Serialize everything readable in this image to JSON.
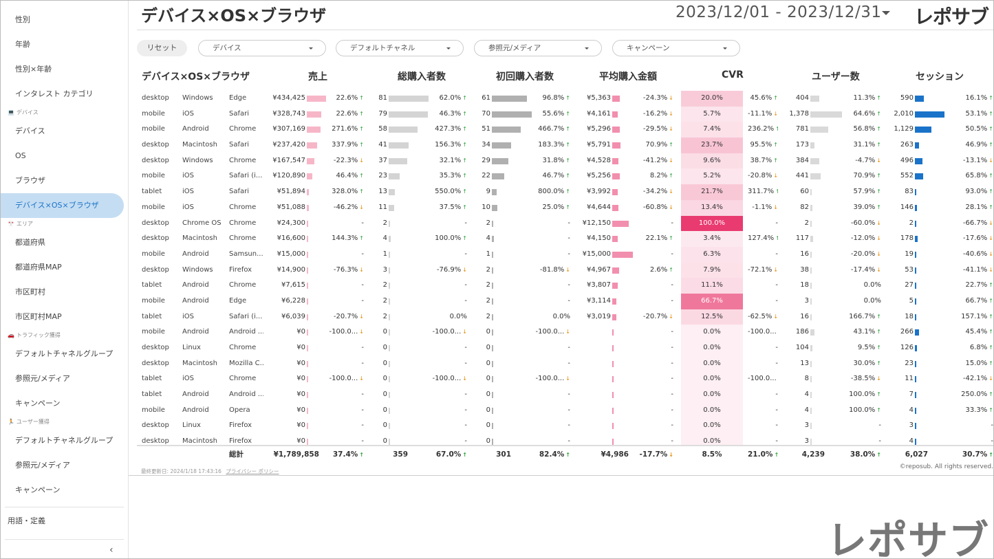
{
  "sidebar": {
    "group1_items": [
      "性別",
      "年齢",
      "性別×年齢",
      "インタレスト カテゴリ"
    ],
    "sections": {
      "device": {
        "icon": "monitor-icon",
        "glyph": "💻",
        "label": "デバイス"
      },
      "area": {
        "icon": "japan-flag-icon",
        "glyph": "🎌",
        "label": "エリア"
      },
      "traffic": {
        "icon": "car-icon",
        "glyph": "🚗",
        "label": "トラフィック獲得"
      },
      "user": {
        "icon": "runner-icon",
        "glyph": "🏃",
        "label": "ユーザー獲得"
      }
    },
    "device_items": [
      "デバイス",
      "OS",
      "ブラウザ",
      "デバイス×OS×ブラウザ"
    ],
    "area_items": [
      "都道府県",
      "都道府県MAP",
      "市区町村",
      "市区町村MAP"
    ],
    "traffic_items": [
      "デフォルトチャネルグループ",
      "参照元/メディア",
      "キャンペーン"
    ],
    "user_items": [
      "デフォルトチャネルグループ",
      "参照元/メディア",
      "キャンペーン"
    ],
    "active_item": "デバイス×OS×ブラウザ",
    "terms": "用語・定義",
    "collapse_glyph": "‹"
  },
  "header": {
    "title": "デバイス×OS×ブラウザ",
    "date_range": "2023/12/01 - 2023/12/31",
    "logo": "レポサブ"
  },
  "filters": {
    "reset": "リセット",
    "device": "デバイス",
    "channel": "デフォルトチャネル",
    "source": "参照元/メディア",
    "campaign": "キャンペーン"
  },
  "table": {
    "headers": {
      "dim": "デバイス×OS×ブラウザ",
      "sales": "売上",
      "buyers": "総購入者数",
      "first": "初回購入者数",
      "avg": "平均購入金額",
      "cvr": "CVR",
      "users": "ユーザー数",
      "sessions": "セッション"
    },
    "rows": [
      [
        "desktop",
        "Windows",
        "Edge",
        "¥434,425",
        "22.6%",
        "81",
        "62.0%",
        "61",
        "96.8%",
        "¥5,363",
        "-24.3%",
        "20.0%",
        "45.6%",
        "404",
        "11.3%",
        "590",
        "16.1%"
      ],
      [
        "mobile",
        "iOS",
        "Safari",
        "¥328,743",
        "22.6%",
        "79",
        "46.3%",
        "70",
        "55.6%",
        "¥4,161",
        "-16.2%",
        "5.7%",
        "-11.1%",
        "1,378",
        "64.6%",
        "2,010",
        "53.1%"
      ],
      [
        "mobile",
        "Android",
        "Chrome",
        "¥307,169",
        "271.6%",
        "58",
        "427.3%",
        "51",
        "466.7%",
        "¥5,296",
        "-29.5%",
        "7.4%",
        "236.2%",
        "781",
        "56.8%",
        "1,129",
        "50.5%"
      ],
      [
        "desktop",
        "Macintosh",
        "Safari",
        "¥237,420",
        "337.9%",
        "41",
        "156.3%",
        "34",
        "183.3%",
        "¥5,791",
        "70.9%",
        "23.7%",
        "95.5%",
        "173",
        "31.1%",
        "263",
        "46.9%"
      ],
      [
        "desktop",
        "Windows",
        "Chrome",
        "¥167,547",
        "-22.3%",
        "37",
        "32.1%",
        "29",
        "31.8%",
        "¥4,528",
        "-41.2%",
        "9.6%",
        "38.7%",
        "384",
        "-4.7%",
        "496",
        "-13.1%"
      ],
      [
        "mobile",
        "iOS",
        "Safari (i...",
        "¥120,890",
        "46.4%",
        "23",
        "35.3%",
        "22",
        "46.7%",
        "¥5,256",
        "8.2%",
        "5.2%",
        "-20.8%",
        "441",
        "70.9%",
        "552",
        "65.8%"
      ],
      [
        "tablet",
        "iOS",
        "Safari",
        "¥51,894",
        "328.0%",
        "13",
        "550.0%",
        "9",
        "800.0%",
        "¥3,992",
        "-34.2%",
        "21.7%",
        "311.7%",
        "60",
        "57.9%",
        "83",
        "93.0%"
      ],
      [
        "mobile",
        "iOS",
        "Chrome",
        "¥51,088",
        "-46.2%",
        "11",
        "37.5%",
        "10",
        "25.0%",
        "¥4,644",
        "-60.8%",
        "13.4%",
        "-1.1%",
        "82",
        "39.0%",
        "146",
        "28.1%"
      ],
      [
        "desktop",
        "Chrome OS",
        "Chrome",
        "¥24,300",
        "-",
        "2",
        "-",
        "2",
        "-",
        "¥12,150",
        "-",
        "100.0%",
        "-",
        "2",
        "-60.0%",
        "2",
        "-66.7%"
      ],
      [
        "desktop",
        "Macintosh",
        "Chrome",
        "¥16,600",
        "144.3%",
        "4",
        "100.0%",
        "4",
        "-",
        "¥4,150",
        "22.1%",
        "3.4%",
        "127.4%",
        "117",
        "-12.0%",
        "178",
        "-17.6%"
      ],
      [
        "mobile",
        "Android",
        "Samsun...",
        "¥15,000",
        "-",
        "1",
        "-",
        "1",
        "-",
        "¥15,000",
        "-",
        "6.3%",
        "-",
        "16",
        "-20.0%",
        "19",
        "-40.6%"
      ],
      [
        "desktop",
        "Windows",
        "Firefox",
        "¥14,900",
        "-76.3%",
        "3",
        "-76.9%",
        "2",
        "-81.8%",
        "¥4,967",
        "2.6%",
        "7.9%",
        "-72.1%",
        "38",
        "-17.4%",
        "53",
        "-41.1%"
      ],
      [
        "tablet",
        "Android",
        "Chrome",
        "¥7,615",
        "-",
        "2",
        "-",
        "2",
        "-",
        "¥3,807",
        "-",
        "11.1%",
        "-",
        "18",
        "0.0%",
        "27",
        "22.7%"
      ],
      [
        "mobile",
        "Android",
        "Edge",
        "¥6,228",
        "-",
        "2",
        "-",
        "2",
        "-",
        "¥3,114",
        "-",
        "66.7%",
        "-",
        "3",
        "0.0%",
        "5",
        "66.7%"
      ],
      [
        "tablet",
        "iOS",
        "Safari (i...",
        "¥6,039",
        "-20.7%",
        "2",
        "0.0%",
        "2",
        "0.0%",
        "¥3,019",
        "-20.7%",
        "12.5%",
        "-62.5%",
        "16",
        "166.7%",
        "18",
        "157.1%"
      ],
      [
        "mobile",
        "Android",
        "Android ...",
        "¥0",
        "-100.0...",
        "0",
        "-100.0...",
        "0",
        "-100.0...",
        "",
        "-",
        "0.0%",
        "-100.0...",
        "186",
        "43.1%",
        "266",
        "45.4%"
      ],
      [
        "desktop",
        "Linux",
        "Chrome",
        "¥0",
        "-",
        "0",
        "-",
        "0",
        "-",
        "",
        "-",
        "0.0%",
        "-",
        "104",
        "9.5%",
        "126",
        "6.8%"
      ],
      [
        "desktop",
        "Macintosh",
        "Mozilla C...",
        "¥0",
        "-",
        "0",
        "-",
        "0",
        "-",
        "",
        "-",
        "0.0%",
        "-",
        "13",
        "30.0%",
        "23",
        "15.0%"
      ],
      [
        "tablet",
        "iOS",
        "Chrome",
        "¥0",
        "-100.0...",
        "0",
        "-100.0...",
        "0",
        "-100.0...",
        "",
        "-",
        "0.0%",
        "-100.0...",
        "8",
        "-38.5%",
        "11",
        "-42.1%"
      ],
      [
        "tablet",
        "Android",
        "Android ...",
        "¥0",
        "-",
        "0",
        "-",
        "0",
        "-",
        "",
        "-",
        "0.0%",
        "-",
        "4",
        "100.0%",
        "7",
        "250.0%"
      ],
      [
        "mobile",
        "Android",
        "Opera",
        "¥0",
        "-",
        "0",
        "-",
        "0",
        "-",
        "",
        "-",
        "0.0%",
        "-",
        "4",
        "100.0%",
        "4",
        "33.3%"
      ],
      [
        "desktop",
        "Linux",
        "Firefox",
        "¥0",
        "-",
        "0",
        "-",
        "0",
        "-",
        "",
        "-",
        "0.0%",
        "-",
        "3",
        "-",
        "3",
        "-"
      ],
      [
        "desktop",
        "Macintosh",
        "Firefox",
        "¥0",
        "-",
        "0",
        "-",
        "0",
        "-",
        "",
        "-",
        "0.0%",
        "-",
        "3",
        "-",
        "4",
        "-"
      ]
    ],
    "bar_fractions": {
      "sales": [
        1,
        0.757,
        0.707,
        0.547,
        0.386,
        0.278,
        0.119,
        0.118,
        0.056,
        0.038,
        0.035,
        0.034,
        0.018,
        0.014,
        0.014,
        0,
        0,
        0,
        0,
        0,
        0,
        0,
        0
      ],
      "buyers": [
        1,
        0.975,
        0.716,
        0.506,
        0.457,
        0.284,
        0.16,
        0.136,
        0.025,
        0.049,
        0.012,
        0.037,
        0.025,
        0.025,
        0.025,
        0,
        0,
        0,
        0,
        0,
        0,
        0,
        0
      ],
      "first": [
        0.871,
        1,
        0.729,
        0.486,
        0.414,
        0.314,
        0.129,
        0.143,
        0.029,
        0.057,
        0.014,
        0.029,
        0.029,
        0.029,
        0.029,
        0,
        0,
        0,
        0,
        0,
        0,
        0,
        0
      ],
      "avg": [
        0.358,
        0.277,
        0.353,
        0.386,
        0.302,
        0.35,
        0.266,
        0.31,
        0.81,
        0.277,
        1,
        0.331,
        0.254,
        0.208,
        0.201,
        0,
        0,
        0,
        0,
        0,
        0,
        0,
        0
      ],
      "cvr": [
        0.2,
        0.057,
        0.074,
        0.237,
        0.096,
        0.052,
        0.217,
        0.134,
        1,
        0.034,
        0.063,
        0.079,
        0.111,
        0.667,
        0.125,
        0,
        0,
        0,
        0,
        0,
        0,
        0,
        0
      ],
      "users": [
        0.293,
        1,
        0.567,
        0.126,
        0.279,
        0.32,
        0.044,
        0.06,
        0.001,
        0.085,
        0.012,
        0.028,
        0.013,
        0.002,
        0.012,
        0.135,
        0.075,
        0.009,
        0.006,
        0.003,
        0.003,
        0.002,
        0.002
      ],
      "sessions": [
        0.294,
        1,
        0.562,
        0.131,
        0.247,
        0.275,
        0.041,
        0.073,
        0.001,
        0.089,
        0.009,
        0.026,
        0.013,
        0.002,
        0.009,
        0.132,
        0.063,
        0.011,
        0.005,
        0.003,
        0.002,
        0.001,
        0.002
      ]
    },
    "totals": [
      "総計",
      "¥1,789,858",
      "37.4%",
      "359",
      "67.0%",
      "301",
      "82.4%",
      "¥4,986",
      "-17.7%",
      "8.5%",
      "21.0%",
      "4,239",
      "38.0%",
      "6,027",
      "30.7%"
    ]
  },
  "footer": {
    "updated": "最終更新日: 2024/1/18 17:43:16",
    "privacy": "プライバシー ポリシー",
    "copyright": "©reposub. All rights reserved."
  },
  "watermark": "レポサブ",
  "colors": {
    "sales_bar": "#f7b6c8",
    "gray_bar": "#d4d4d4",
    "first_bar": "#b0b0b0",
    "avg_bar": "#f28fae",
    "cvr_heat": "#e8336a",
    "users_bar": "#d9d9d9",
    "sessions_bar": "#1a73c9",
    "up_arrow": "#2aa13a",
    "down_arrow": "#e58a00",
    "active_nav": "#c5ddf2"
  }
}
